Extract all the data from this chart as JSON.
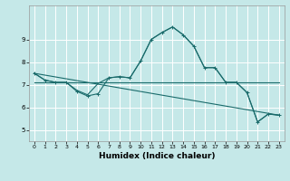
{
  "xlabel": "Humidex (Indice chaleur)",
  "background_color": "#c5e8e8",
  "grid_color": "#ffffff",
  "line_color": "#1a6b6b",
  "xlim": [
    -0.5,
    23.5
  ],
  "ylim": [
    4.5,
    10.5
  ],
  "yticks": [
    5,
    6,
    7,
    8,
    9
  ],
  "xticks": [
    0,
    1,
    2,
    3,
    4,
    5,
    6,
    7,
    8,
    9,
    10,
    11,
    12,
    13,
    14,
    15,
    16,
    17,
    18,
    19,
    20,
    21,
    22,
    23
  ],
  "series": [
    {
      "x": [
        0,
        1,
        2,
        3,
        4,
        5,
        6,
        7,
        8,
        9,
        10,
        11,
        12,
        13,
        14,
        15,
        16,
        17,
        18,
        19,
        20,
        21,
        22,
        23
      ],
      "y": [
        7.5,
        7.2,
        7.1,
        7.1,
        6.7,
        6.5,
        6.6,
        7.3,
        7.35,
        7.3,
        8.05,
        9.0,
        9.3,
        9.55,
        9.2,
        8.7,
        7.75,
        7.75,
        7.1,
        7.1,
        6.65,
        5.35,
        5.7,
        5.65
      ],
      "marker": true
    },
    {
      "x": [
        0,
        1,
        2,
        3,
        4,
        5,
        6,
        7,
        8,
        9,
        10,
        11,
        12,
        13,
        14,
        15,
        16,
        17,
        18,
        19,
        20,
        21,
        22,
        23
      ],
      "y": [
        7.5,
        7.2,
        7.1,
        7.1,
        6.7,
        6.5,
        6.5,
        7.3,
        7.35,
        7.3,
        8.05,
        9.0,
        9.3,
        9.55,
        9.2,
        8.7,
        7.75,
        7.75,
        7.1,
        7.1,
        6.65,
        5.35,
        5.7,
        5.65
      ],
      "marker": false
    },
    {
      "x": [
        0,
        23
      ],
      "y": [
        7.1,
        7.1
      ],
      "marker": false
    },
    {
      "x": [
        0,
        23
      ],
      "y": [
        7.5,
        5.65
      ],
      "marker": false
    }
  ],
  "curve2_x": [
    0,
    1,
    2,
    3,
    4,
    5,
    6,
    7,
    8,
    9,
    10,
    11,
    12,
    13,
    14,
    15,
    16,
    17,
    18,
    19,
    20,
    21,
    22,
    23
  ],
  "curve2_y": [
    7.5,
    7.2,
    7.1,
    7.1,
    6.75,
    6.55,
    7.05,
    7.3,
    7.35,
    7.3,
    8.05,
    9.0,
    9.3,
    9.55,
    9.2,
    8.7,
    7.75,
    7.75,
    7.1,
    7.1,
    6.65,
    5.35,
    5.7,
    5.65
  ]
}
